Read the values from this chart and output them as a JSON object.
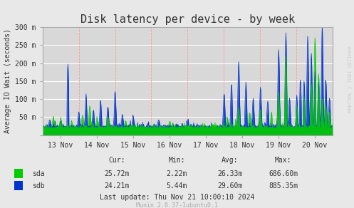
{
  "title": "Disk latency per device - by week",
  "ylabel": "Average IO Wait (seconds)",
  "bg_color": "#e8e8e8",
  "plot_bg_color": "#d8d8d8",
  "grid_color_h": "#ffffff",
  "grid_color_v": "#ff9999",
  "sda_color": "#00cc00",
  "sdb_color": "#0033cc",
  "yticks": [
    0,
    50,
    100,
    150,
    200,
    250,
    300
  ],
  "ytick_labels": [
    "",
    "50 m",
    "100 m",
    "150 m",
    "200 m",
    "250 m",
    "300 m"
  ],
  "xtick_labels": [
    "13 Nov",
    "14 Nov",
    "15 Nov",
    "16 Nov",
    "17 Nov",
    "18 Nov",
    "19 Nov",
    "20 Nov"
  ],
  "legend_text": [
    [
      "sda",
      "25.72m",
      "2.22m",
      "26.33m",
      "686.60m"
    ],
    [
      "sdb",
      "24.21m",
      "5.44m",
      "29.60m",
      "885.35m"
    ]
  ],
  "last_update": "Last update: Thu Nov 21 10:00:10 2024",
  "munin_version": "Munin 2.0.37-1ubuntu0.1",
  "rrdtool_text": "RRDTOOL / TOBI OETIKER",
  "ylim": [
    0,
    300
  ],
  "num_points": 800
}
